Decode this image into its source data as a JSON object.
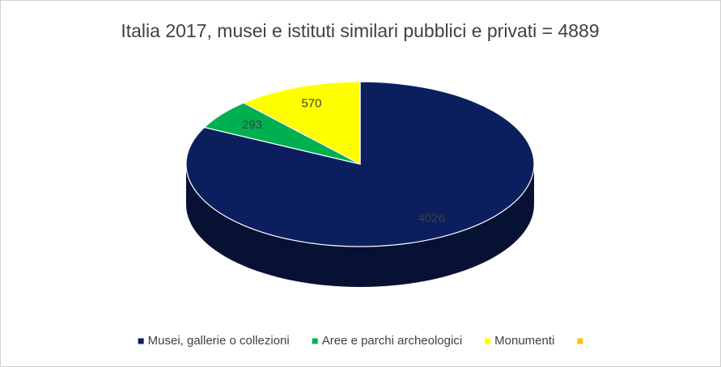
{
  "chart_data": {
    "type": "pie3d",
    "title": "Italia 2017, musei e istituti similari pubblici e privati = 4889",
    "categories": [
      "Musei, gallerie o collezioni",
      "Aree e parchi archeologici",
      "Monumenti",
      null
    ],
    "values": [
      4026,
      293,
      570,
      0
    ],
    "colors": [
      "#0b1f5e",
      "#00b050",
      "#ffff00",
      "#ffc000"
    ],
    "legend": "bottom"
  }
}
